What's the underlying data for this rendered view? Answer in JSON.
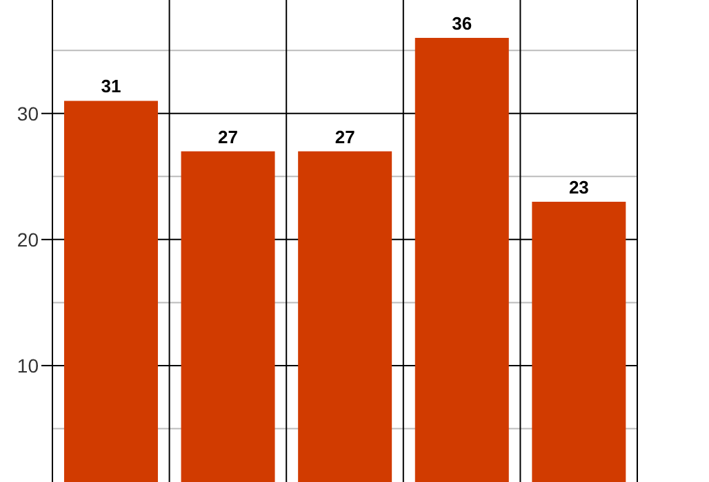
{
  "chart_data": {
    "type": "bar",
    "categories": [
      null,
      null,
      null,
      null,
      null
    ],
    "values": [
      31,
      27,
      27,
      36,
      23
    ],
    "color": "#d13b00",
    "ylim": [
      0,
      39
    ],
    "yticks": [
      {
        "value": 5,
        "label": null
      },
      10,
      {
        "value": 15,
        "label": null
      },
      20,
      {
        "value": 25,
        "label": null
      },
      30,
      {
        "value": 35,
        "label": null
      }
    ],
    "grid": true,
    "data_labels": true
  }
}
